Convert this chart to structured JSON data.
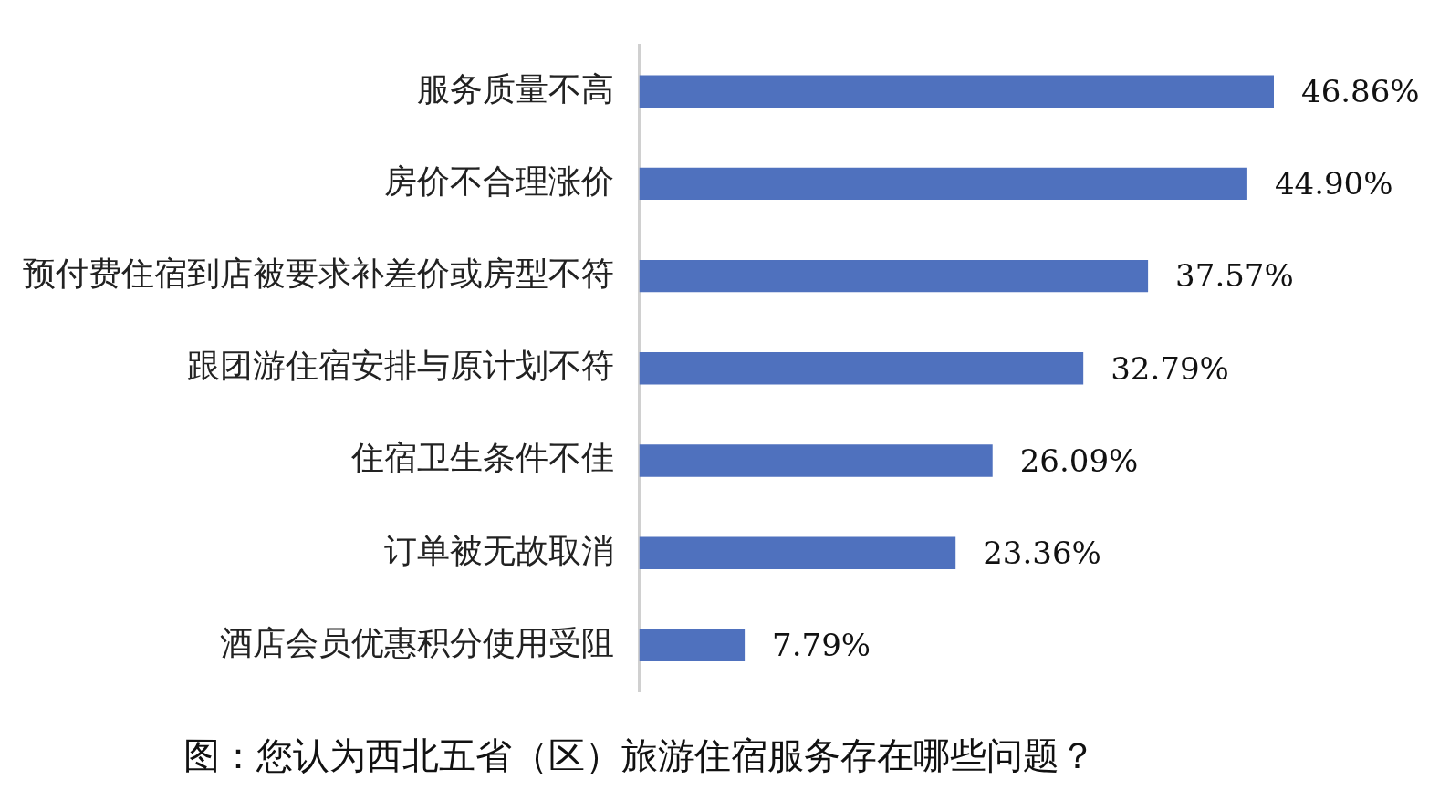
{
  "chart_data": {
    "type": "bar",
    "orientation": "horizontal",
    "relative": false,
    "title": "图：您认为西北五省（区）旅游住宿服务存在哪些问题？",
    "categories": [
      "服务质量不高",
      "房价不合理涨价",
      "预付费住宿到店被要求补差价或房型不符",
      "跟团游住宿安排与原计划不符",
      "住宿卫生条件不佳",
      "订单被无故取消",
      "酒店会员优惠积分使用受阻"
    ],
    "values": [
      46.86,
      44.9,
      37.57,
      32.79,
      26.09,
      23.36,
      7.79
    ],
    "value_labels": [
      "46.86%",
      "44.90%",
      "37.57%",
      "32.79%",
      "26.09%",
      "23.36%",
      "7.79%"
    ],
    "color": "#4f71be",
    "legend": false
  }
}
